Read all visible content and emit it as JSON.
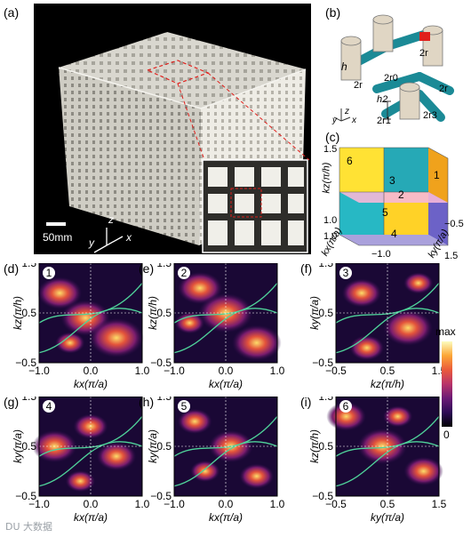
{
  "figure": {
    "panel_labels": [
      "(a)",
      "(b)",
      "(c)",
      "(d)",
      "(e)",
      "(f)",
      "(g)",
      "(h)",
      "(i)"
    ],
    "photo": {
      "scale_bar": "50mm",
      "axes": [
        "z",
        "y",
        "x"
      ]
    },
    "unit_cell": {
      "labels": [
        "h",
        "2r",
        "2r0",
        "2r",
        "2r",
        "h2",
        "2r1",
        "2r3",
        "2r3"
      ],
      "axes": [
        "z",
        "y",
        "x"
      ]
    },
    "cube": {
      "region_numbers": [
        "6",
        "3",
        "1",
        "2",
        "5",
        "4"
      ],
      "kz_label": "kz(π/h)",
      "kx_label": "kx(π/a)",
      "ky_label": "ky(π/a)",
      "ticks": [
        "1.5",
        "1.0",
        "−0.5",
        "1.0",
        "−1.0",
        "1.5"
      ]
    },
    "colorbar": {
      "max_label": "max",
      "min_label": "0",
      "stops": [
        "#000004",
        "#2c0b55",
        "#6b1a75",
        "#b8336a",
        "#ea5a3b",
        "#fca636",
        "#fcfdbf"
      ]
    },
    "watermark": "DU 大数据"
  },
  "chart_data": [
    {
      "type": "heatmap",
      "panel": "(d)",
      "badge": "1",
      "xlabel": "kx(π/a)",
      "ylabel": "kz(π/h)",
      "x_ticks": [
        "−1.0",
        "0.0",
        "1.0"
      ],
      "y_ticks": [
        "1.5",
        "0.5",
        "−0.5"
      ],
      "xlim": [
        -1.0,
        1.0
      ],
      "ylim": [
        -0.5,
        1.5
      ]
    },
    {
      "type": "heatmap",
      "panel": "(e)",
      "badge": "2",
      "xlabel": "kx(π/a)",
      "ylabel": "kz(π/h)",
      "x_ticks": [
        "−1.0",
        "0.0",
        "1.0"
      ],
      "y_ticks": [
        "1.5",
        "0.5",
        "−0.5"
      ],
      "xlim": [
        -1.0,
        1.0
      ],
      "ylim": [
        -0.5,
        1.5
      ]
    },
    {
      "type": "heatmap",
      "panel": "(f)",
      "badge": "3",
      "xlabel": "kz(π/h)",
      "ylabel": "ky(π/a)",
      "x_ticks": [
        "−0.5",
        "0.5",
        "1.5"
      ],
      "y_ticks": [
        "1.5",
        "0.5",
        "−0.5"
      ],
      "xlim": [
        -0.5,
        1.5
      ],
      "ylim": [
        -0.5,
        1.5
      ]
    },
    {
      "type": "heatmap",
      "panel": "(g)",
      "badge": "4",
      "xlabel": "kx(π/a)",
      "ylabel": "ky(π/a)",
      "x_ticks": [
        "−1.0",
        "0.0",
        "1.0"
      ],
      "y_ticks": [
        "1.5",
        "0.5",
        "−0.5"
      ],
      "xlim": [
        -1.0,
        1.0
      ],
      "ylim": [
        -0.5,
        1.5
      ]
    },
    {
      "type": "heatmap",
      "panel": "(h)",
      "badge": "5",
      "xlabel": "kx(π/a)",
      "ylabel": "ky(π/a)",
      "x_ticks": [
        "−1.0",
        "0.0",
        "1.0"
      ],
      "y_ticks": [
        "1.5",
        "0.5",
        "−0.5"
      ],
      "xlim": [
        -1.0,
        1.0
      ],
      "ylim": [
        -0.5,
        1.5
      ]
    },
    {
      "type": "heatmap",
      "panel": "(i)",
      "badge": "6",
      "xlabel": "ky(π/a)",
      "ylabel": "kz(π/h)",
      "x_ticks": [
        "−0.5",
        "0.5",
        "1.5"
      ],
      "y_ticks": [
        "1.5",
        "0.5",
        "−0.5"
      ],
      "xlim": [
        -0.5,
        1.5
      ],
      "ylim": [
        -0.5,
        1.5
      ]
    }
  ]
}
